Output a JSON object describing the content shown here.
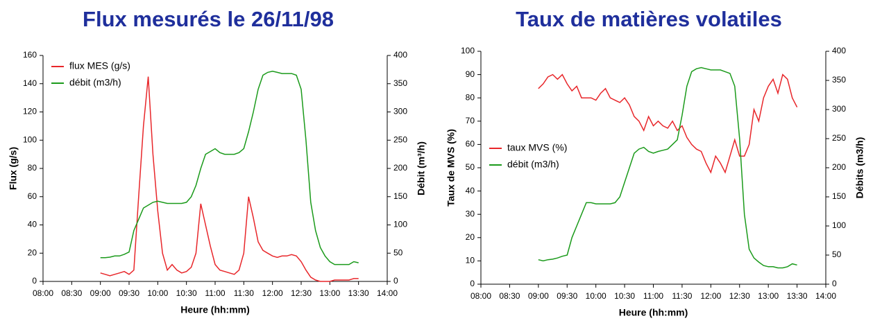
{
  "chart_data": [
    {
      "type": "line",
      "title": "Flux mesurés le 26/11/98",
      "xlabel": "Heure  (hh:mm)",
      "ylabel": "Flux  (g/s)",
      "y2label": "Débit  (m³/h)",
      "x": [
        "09:00",
        "09:05",
        "09:10",
        "09:15",
        "09:20",
        "09:25",
        "09:30",
        "09:35",
        "09:40",
        "09:45",
        "09:50",
        "09:55",
        "10:00",
        "10:05",
        "10:10",
        "10:15",
        "10:20",
        "10:25",
        "10:30",
        "10:35",
        "10:40",
        "10:45",
        "10:50",
        "10:55",
        "11:00",
        "11:05",
        "11:10",
        "11:15",
        "11:20",
        "11:25",
        "11:30",
        "11:35",
        "11:40",
        "11:45",
        "11:50",
        "11:55",
        "12:00",
        "12:05",
        "12:10",
        "12:15",
        "12:20",
        "12:25",
        "12:30",
        "12:35",
        "12:40",
        "12:45",
        "12:50",
        "12:55",
        "13:00",
        "13:05",
        "13:10",
        "13:15",
        "13:20",
        "13:25",
        "13:30"
      ],
      "series": [
        {
          "name": "flux MES (g/s)",
          "color": "#e8262a",
          "values": [
            6,
            5,
            4,
            5,
            6,
            7,
            5,
            8,
            60,
            110,
            145,
            90,
            50,
            20,
            8,
            12,
            8,
            6,
            7,
            10,
            20,
            55,
            40,
            25,
            12,
            8,
            7,
            6,
            5,
            8,
            20,
            60,
            45,
            28,
            22,
            20,
            18,
            17,
            18,
            18,
            19,
            18,
            14,
            8,
            3,
            1,
            0,
            0,
            0,
            1,
            1,
            1,
            1,
            2,
            2
          ]
        },
        {
          "name": "débit (m3/h)",
          "color": "#1a9a1a",
          "axis": "y2",
          "values": [
            42,
            42,
            43,
            45,
            45,
            48,
            52,
            90,
            110,
            130,
            135,
            140,
            142,
            140,
            138,
            138,
            138,
            138,
            140,
            150,
            170,
            200,
            225,
            230,
            235,
            228,
            225,
            225,
            225,
            228,
            235,
            265,
            300,
            340,
            365,
            370,
            372,
            370,
            368,
            368,
            368,
            365,
            340,
            250,
            140,
            90,
            60,
            45,
            35,
            30,
            30,
            30,
            30,
            35,
            33
          ]
        }
      ],
      "xlim": [
        "08:00",
        "14:00"
      ],
      "xticks": [
        "08:00",
        "08:30",
        "09:00",
        "09:30",
        "10:00",
        "10:30",
        "11:00",
        "11:30",
        "12:00",
        "12:30",
        "13:00",
        "13:30",
        "14:00"
      ],
      "ylim": [
        0,
        160
      ],
      "yticks": [
        0,
        20,
        40,
        60,
        80,
        100,
        120,
        140,
        160
      ],
      "y2lim": [
        0,
        400
      ],
      "y2ticks": [
        0,
        50,
        100,
        150,
        200,
        250,
        300,
        350,
        400
      ],
      "legend": "upper left"
    },
    {
      "type": "line",
      "title": "Taux de matières volatiles",
      "xlabel": "Heure (hh:mm)",
      "ylabel": "Taux de MVS (%)",
      "y2label": "Débits (m3/h)",
      "x": [
        "09:00",
        "09:05",
        "09:10",
        "09:15",
        "09:20",
        "09:25",
        "09:30",
        "09:35",
        "09:40",
        "09:45",
        "09:50",
        "09:55",
        "10:00",
        "10:05",
        "10:10",
        "10:15",
        "10:20",
        "10:25",
        "10:30",
        "10:35",
        "10:40",
        "10:45",
        "10:50",
        "10:55",
        "11:00",
        "11:05",
        "11:10",
        "11:15",
        "11:20",
        "11:25",
        "11:30",
        "11:35",
        "11:40",
        "11:45",
        "11:50",
        "11:55",
        "12:00",
        "12:05",
        "12:10",
        "12:15",
        "12:20",
        "12:25",
        "12:30",
        "12:35",
        "12:40",
        "12:45",
        "12:50",
        "12:55",
        "13:00",
        "13:05",
        "13:10",
        "13:15",
        "13:20",
        "13:25",
        "13:30"
      ],
      "series": [
        {
          "name": "taux MVS (%)",
          "color": "#e8262a",
          "values": [
            84,
            86,
            89,
            90,
            88,
            90,
            86,
            83,
            85,
            80,
            80,
            80,
            79,
            82,
            84,
            80,
            79,
            78,
            80,
            77,
            72,
            70,
            66,
            72,
            68,
            70,
            68,
            67,
            70,
            66,
            68,
            63,
            60,
            58,
            57,
            52,
            48,
            55,
            52,
            48,
            55,
            62,
            55,
            55,
            60,
            75,
            70,
            80,
            85,
            88,
            82,
            90,
            88,
            80,
            76
          ]
        },
        {
          "name": "débit (m3/h)",
          "color": "#1a9a1a",
          "axis": "y2",
          "values": [
            42,
            40,
            42,
            43,
            45,
            48,
            50,
            80,
            100,
            120,
            140,
            140,
            138,
            138,
            138,
            138,
            140,
            150,
            175,
            200,
            225,
            232,
            235,
            228,
            225,
            228,
            230,
            232,
            240,
            248,
            290,
            340,
            365,
            370,
            372,
            370,
            368,
            368,
            368,
            365,
            362,
            340,
            250,
            120,
            60,
            45,
            38,
            32,
            30,
            30,
            28,
            28,
            30,
            35,
            33
          ]
        }
      ],
      "xlim": [
        "08:00",
        "14:00"
      ],
      "xticks": [
        "08:00",
        "08:30",
        "09:00",
        "09:30",
        "10:00",
        "10:30",
        "11:00",
        "11:30",
        "12:00",
        "12:30",
        "13:00",
        "13:30",
        "14:00"
      ],
      "ylim": [
        0,
        100
      ],
      "yticks": [
        0,
        10,
        20,
        30,
        40,
        50,
        60,
        70,
        80,
        90,
        100
      ],
      "y2lim": [
        0,
        400
      ],
      "y2ticks": [
        0,
        50,
        100,
        150,
        200,
        250,
        300,
        350,
        400
      ],
      "legend": "center left"
    }
  ]
}
